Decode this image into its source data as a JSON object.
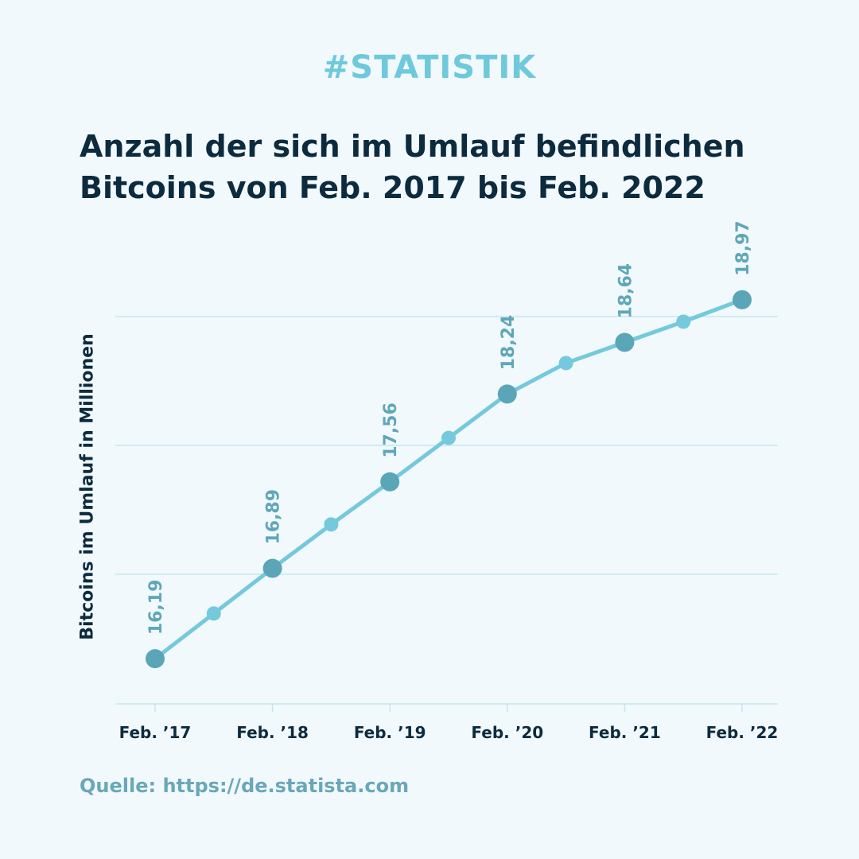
{
  "header": {
    "hashtag": "#STATISTIK",
    "title_line1": "Anzahl der sich im Umlauf befindlichen",
    "title_line2": "Bitcoins von Feb. 2017 bis Feb. 2022"
  },
  "footer": {
    "source": "Quelle: https://de.statista.com"
  },
  "colors": {
    "background": "#f1f9fc",
    "line": "#74c9dc",
    "major_point": "#5aa6b8",
    "minor_point": "#74c9dc",
    "gridline": "#c6e7ef",
    "data_label": "#5fa7b8",
    "title": "#0d2b3e",
    "hashtag": "#6fc9dd"
  },
  "chart_data": {
    "type": "line",
    "title": "Anzahl der sich im Umlauf befindlichen Bitcoins von Feb. 2017 bis Feb. 2022",
    "ylabel": "Bitcoins im Umlauf in Millionen",
    "xlabel": "",
    "categories": [
      "Feb. ’17",
      "Feb. ’18",
      "Feb. ’19",
      "Feb. ’20",
      "Feb. ’21",
      "Feb. ’22"
    ],
    "series": [
      {
        "points": [
          {
            "x": "Feb. 2017",
            "y": 16.19,
            "label": "16,19"
          },
          {
            "x": "Aug. 2017",
            "y": 16.54
          },
          {
            "x": "Feb. 2018",
            "y": 16.89,
            "label": "16,89"
          },
          {
            "x": "Aug. 2018",
            "y": 17.23
          },
          {
            "x": "Feb. 2019",
            "y": 17.56,
            "label": "17,56"
          },
          {
            "x": "Aug. 2019",
            "y": 17.9
          },
          {
            "x": "Feb. 2020",
            "y": 18.24,
            "label": "18,24"
          },
          {
            "x": "Aug. 2020",
            "y": 18.48
          },
          {
            "x": "Feb. 2021",
            "y": 18.64,
            "label": "18,64"
          },
          {
            "x": "Aug. 2021",
            "y": 18.8
          },
          {
            "x": "Feb. 2022",
            "y": 18.97,
            "label": "18,97"
          }
        ]
      }
    ],
    "ylim": [
      15.84,
      18.84
    ],
    "grid": true,
    "legend": "none"
  }
}
